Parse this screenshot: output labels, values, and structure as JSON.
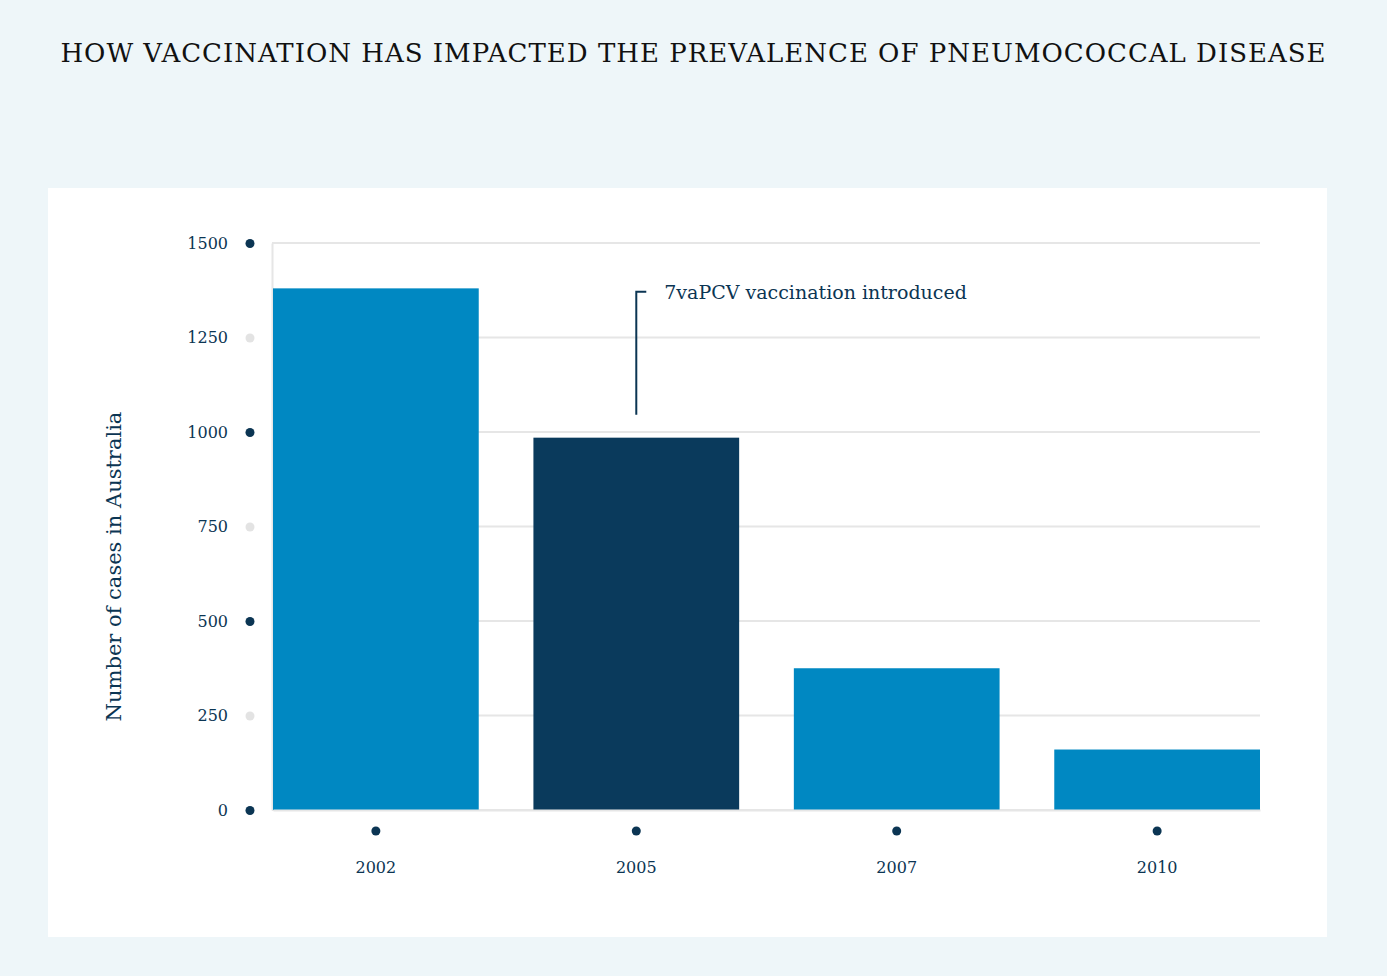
{
  "chart_data": {
    "type": "bar",
    "title": "HOW VACCINATION HAS IMPACTED THE PREVALENCE OF PNEUMOCOCCAL DISEASE",
    "y_label": "Number of cases in Australia",
    "categories": [
      "2002",
      "2005",
      "2007",
      "2010"
    ],
    "values": [
      1380,
      985,
      375,
      160
    ],
    "colors": [
      "#0088c2",
      "#0a3a5c",
      "#0088c2",
      "#0088c2"
    ],
    "ylim": [
      0,
      1500
    ],
    "yticks": [
      0,
      250,
      500,
      750,
      1000,
      1250,
      1500
    ],
    "grid": true,
    "annotations": [
      {
        "text": "7vaPCV vaccination introduced",
        "x": "2005"
      }
    ]
  }
}
